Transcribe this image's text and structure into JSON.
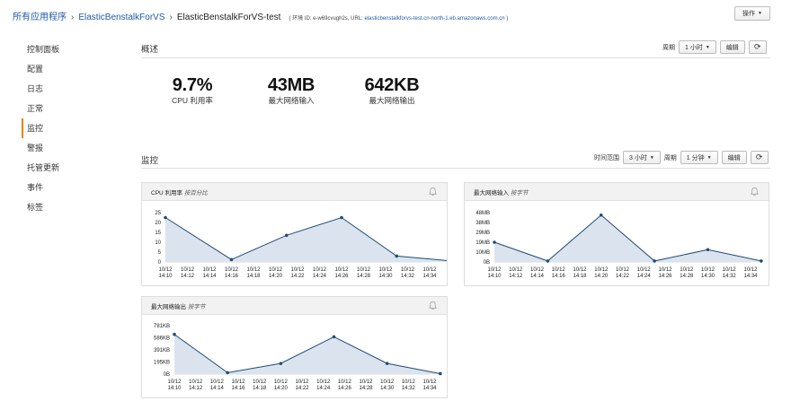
{
  "breadcrumb": {
    "all_apps": "所有应用程序",
    "app": "ElasticBenstalkForVS",
    "env": "ElasticBenstalkForVS-test",
    "meta_prefix": "( 环境 ID: e-w69cvugh2s, URL:",
    "meta_url": "elasticbenstalkforvs-test.cn-north-1.eb.amazonaws.com.cn",
    "meta_suffix": ")"
  },
  "header": {
    "actions_label": "操作"
  },
  "sidebar": {
    "items": [
      {
        "label": "控制面板"
      },
      {
        "label": "配置"
      },
      {
        "label": "日志"
      },
      {
        "label": "正常"
      },
      {
        "label": "监控",
        "active": true
      },
      {
        "label": "警报"
      },
      {
        "label": "托管更新"
      },
      {
        "label": "事件"
      },
      {
        "label": "标签"
      }
    ]
  },
  "overview": {
    "title": "概述",
    "period_label": "周期",
    "period_value": "1 小时",
    "edit_label": "编辑",
    "metrics": [
      {
        "value": "9.7%",
        "label": "CPU 利用率"
      },
      {
        "value": "43MB",
        "label": "最大网络输入"
      },
      {
        "value": "642KB",
        "label": "最大网络输出"
      }
    ]
  },
  "monitoring": {
    "title": "监控",
    "range_label": "时间范围",
    "range_value": "3 小时",
    "period_label": "周期",
    "period_value": "1 分钟",
    "edit_label": "编辑"
  },
  "chart_data": [
    {
      "type": "area",
      "title": "CPU 利用率",
      "unit": "按百分比",
      "x": [
        "10/12 14:10",
        "10/12 14:12",
        "10/12 14:14",
        "10/12 14:16",
        "10/12 14:18",
        "10/12 14:20",
        "10/12 14:22",
        "10/12 14:24",
        "10/12 14:26",
        "10/12 14:28",
        "10/12 14:30",
        "10/12 14:32",
        "10/12 14:34"
      ],
      "points": [
        [
          0,
          22.5
        ],
        [
          3,
          1.2
        ],
        [
          5.5,
          13.5
        ],
        [
          8,
          22.5
        ],
        [
          10.5,
          3
        ],
        [
          13,
          0.5
        ]
      ],
      "yticks": [
        "25",
        "20",
        "15",
        "10",
        "5",
        "0"
      ],
      "ylim": [
        0,
        25
      ],
      "color": "#1f4e79",
      "fill": "#dbe3ee"
    },
    {
      "type": "area",
      "title": "最大网络输入",
      "unit": "按字节",
      "x": [
        "10/12 14:10",
        "10/12 14:12",
        "10/12 14:14",
        "10/12 14:16",
        "10/12 14:18",
        "10/12 14:20",
        "10/12 14:22",
        "10/12 14:24",
        "10/12 14:26",
        "10/12 14:28",
        "10/12 14:30",
        "10/12 14:32",
        "10/12 14:34"
      ],
      "points": [
        [
          0,
          0.4
        ],
        [
          2.5,
          0.02
        ],
        [
          5,
          0.95
        ],
        [
          7.5,
          0.02
        ],
        [
          10,
          0.25
        ],
        [
          12.5,
          0.02
        ]
      ],
      "yticks": [
        "48MB",
        "38MB",
        "29MB",
        "19MB",
        "10MB",
        "0B"
      ],
      "ylim": [
        0,
        1
      ],
      "color": "#1f4e79",
      "fill": "#dbe3ee"
    },
    {
      "type": "area",
      "title": "最大网络输出",
      "unit": "按字节",
      "x": [
        "10/12 14:10",
        "10/12 14:12",
        "10/12 14:14",
        "10/12 14:16",
        "10/12 14:18",
        "10/12 14:20",
        "10/12 14:22",
        "10/12 14:24",
        "10/12 14:26",
        "10/12 14:28",
        "10/12 14:30",
        "10/12 14:32",
        "10/12 14:34"
      ],
      "points": [
        [
          0,
          0.82
        ],
        [
          2.5,
          0.03
        ],
        [
          5,
          0.22
        ],
        [
          7.5,
          0.77
        ],
        [
          10,
          0.22
        ],
        [
          12.5,
          0.01
        ]
      ],
      "yticks": [
        "781KB",
        "586KB",
        "391KB",
        "195KB",
        "0B"
      ],
      "ylim": [
        0,
        1
      ],
      "color": "#1f4e79",
      "fill": "#dbe3ee"
    }
  ]
}
